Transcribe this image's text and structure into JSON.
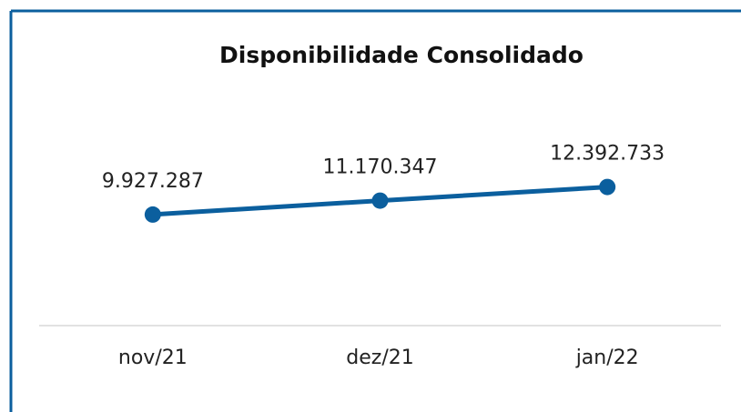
{
  "chart_data": {
    "type": "line",
    "title": "Disponibilidade Consolidado",
    "categories": [
      "nov/21",
      "dez/21",
      "jan/22"
    ],
    "series": [
      {
        "name": "Disponibilidade",
        "color": "#0b5f9e",
        "values": [
          9927287,
          11170347,
          12392733
        ],
        "value_labels": [
          "9.927.287",
          "11.170.347",
          "12.392.733"
        ]
      }
    ],
    "ylim": [
      0,
      20000000
    ]
  }
}
